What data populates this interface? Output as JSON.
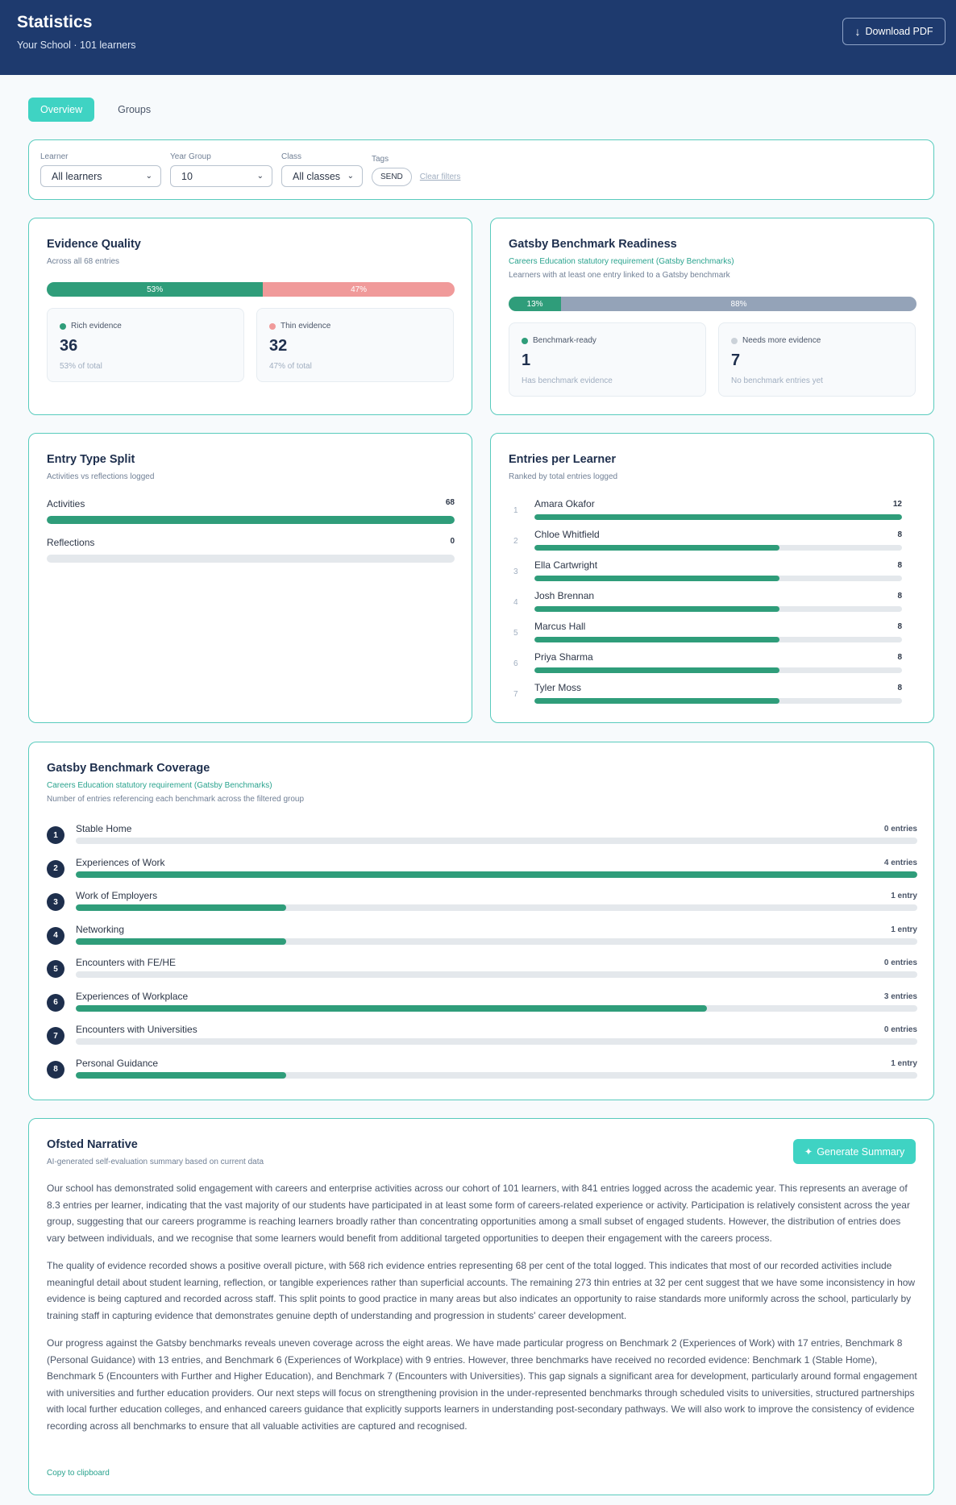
{
  "header": {
    "title": "Statistics",
    "subtitle": "Your School · 101 learners",
    "download_label": "Download PDF",
    "download_icon": "↓"
  },
  "tabs": [
    {
      "label": "Overview",
      "active": true
    },
    {
      "label": "Groups",
      "active": false
    }
  ],
  "filters": {
    "learner": {
      "label": "Learner",
      "value": "All learners"
    },
    "year_group": {
      "label": "Year Group",
      "value": "10"
    },
    "class": {
      "label": "Class",
      "value": "All classes"
    },
    "tags": {
      "label": "Tags",
      "tag": "SEND"
    },
    "clear_label": "Clear filters"
  },
  "evidence_quality": {
    "title": "Evidence Quality",
    "subtitle": "Across all 68 entries",
    "rich_pct": 53,
    "thin_pct": 47,
    "rich_pct_label": "53%",
    "thin_pct_label": "47%",
    "rich_label": "Rich evidence",
    "rich_value": "36",
    "rich_foot": "53% of total",
    "thin_label": "Thin evidence",
    "thin_value": "32",
    "thin_foot": "47% of total",
    "rich_color": "#2f9d7a",
    "thin_color": "#f09a9a"
  },
  "gatsby_readiness": {
    "title": "Gatsby Benchmark Readiness",
    "subtitle_teal": "Careers Education statutory requirement (Gatsby Benchmarks)",
    "subtitle": "Learners with at least one entry linked to a Gatsby benchmark",
    "ready_pct": 13,
    "more_pct": 88,
    "ready_pct_label": "13%",
    "more_pct_label": "88%",
    "ready_label": "Benchmark-ready",
    "ready_value": "1",
    "ready_foot": "Has benchmark evidence",
    "more_label": "Needs more evidence",
    "more_value": "7",
    "more_foot": "No benchmark entries yet",
    "ready_color": "#2f9d7a",
    "more_color": "#94a3b8"
  },
  "entry_type": {
    "title": "Entry Type Split",
    "subtitle": "Activities vs reflections logged",
    "rows": [
      {
        "label": "Activities",
        "value": "68",
        "fraction": 1
      },
      {
        "label": "Reflections",
        "value": "0",
        "fraction": 0
      }
    ]
  },
  "entries_per_learner": {
    "title": "Entries per Learner",
    "subtitle": "Ranked by total entries logged",
    "max": 12,
    "learners": [
      {
        "rank": "1",
        "name": "Amara Okafor",
        "count": 12
      },
      {
        "rank": "2",
        "name": "Chloe Whitfield",
        "count": 8
      },
      {
        "rank": "3",
        "name": "Ella Cartwright",
        "count": 8
      },
      {
        "rank": "4",
        "name": "Josh Brennan",
        "count": 8
      },
      {
        "rank": "5",
        "name": "Marcus Hall",
        "count": 8
      },
      {
        "rank": "6",
        "name": "Priya Sharma",
        "count": 8
      },
      {
        "rank": "7",
        "name": "Tyler Moss",
        "count": 8
      }
    ]
  },
  "gatsby_coverage": {
    "title": "Gatsby Benchmark Coverage",
    "subtitle_teal": "Careers Education statutory requirement (Gatsby Benchmarks)",
    "subtitle": "Number of entries referencing each benchmark across the filtered group",
    "max": 4,
    "benchmarks": [
      {
        "num": "1",
        "name": "Stable Home",
        "count": 0,
        "label": "0 entries"
      },
      {
        "num": "2",
        "name": "Experiences of Work",
        "count": 4,
        "label": "4 entries"
      },
      {
        "num": "3",
        "name": "Work of Employers",
        "count": 1,
        "label": "1 entry"
      },
      {
        "num": "4",
        "name": "Networking",
        "count": 1,
        "label": "1 entry"
      },
      {
        "num": "5",
        "name": "Encounters with FE/HE",
        "count": 0,
        "label": "0 entries"
      },
      {
        "num": "6",
        "name": "Experiences of Workplace",
        "count": 3,
        "label": "3 entries"
      },
      {
        "num": "7",
        "name": "Encounters with Universities",
        "count": 0,
        "label": "0 entries"
      },
      {
        "num": "8",
        "name": "Personal Guidance",
        "count": 1,
        "label": "1 entry"
      }
    ]
  },
  "narrative": {
    "title": "Ofsted Narrative",
    "subtitle": "AI-generated self-evaluation summary based on current data",
    "generate_label": "Generate Summary",
    "generate_icon": "✦",
    "paragraphs": [
      "Our school has demonstrated solid engagement with careers and enterprise activities across our cohort of 101 learners, with 841 entries logged across the academic year. This represents an average of 8.3 entries per learner, indicating that the vast majority of our students have participated in at least some form of careers-related experience or activity. Participation is relatively consistent across the year group, suggesting that our careers programme is reaching learners broadly rather than concentrating opportunities among a small subset of engaged students. However, the distribution of entries does vary between individuals, and we recognise that some learners would benefit from additional targeted opportunities to deepen their engagement with the careers process.",
      "The quality of evidence recorded shows a positive overall picture, with 568 rich evidence entries representing 68 per cent of the total logged. This indicates that most of our recorded activities include meaningful detail about student learning, reflection, or tangible experiences rather than superficial accounts. The remaining 273 thin entries at 32 per cent suggest that we have some inconsistency in how evidence is being captured and recorded across staff. This split points to good practice in many areas but also indicates an opportunity to raise standards more uniformly across the school, particularly by training staff in capturing evidence that demonstrates genuine depth of understanding and progression in students' career development.",
      "Our progress against the Gatsby benchmarks reveals uneven coverage across the eight areas. We have made particular progress on Benchmark 2 (Experiences of Work) with 17 entries, Benchmark 8 (Personal Guidance) with 13 entries, and Benchmark 6 (Experiences of Workplace) with 9 entries. However, three benchmarks have received no recorded evidence: Benchmark 1 (Stable Home), Benchmark 5 (Encounters with Further and Higher Education), and Benchmark 7 (Encounters with Universities). This gap signals a significant area for development, particularly around formal engagement with universities and further education providers. Our next steps will focus on strengthening provision in the under-represented benchmarks through scheduled visits to universities, structured partnerships with local further education colleges, and enhanced careers guidance that explicitly supports learners in understanding post-secondary pathways. We will also work to improve the consistency of evidence recording across all benchmarks to ensure that all valuable activities are captured and recognised."
    ],
    "copy_label": "Copy to clipboard"
  }
}
